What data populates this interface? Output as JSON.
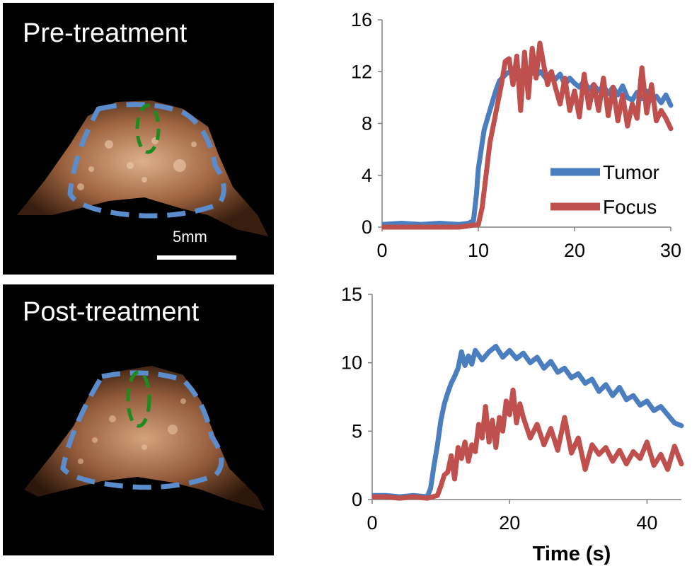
{
  "panels": {
    "pre": {
      "label": "Pre-treatment",
      "scale_label": "5mm"
    },
    "post": {
      "label": "Post-treatment"
    }
  },
  "colors": {
    "tumor": "#4a7ebf",
    "focus": "#c0504d",
    "focus_outline": "#1f8a1f",
    "tissue": "#d8a27a"
  },
  "chart_data": [
    {
      "type": "line",
      "title": "",
      "xlabel": "",
      "ylabel": "",
      "xlim": [
        0,
        30
      ],
      "ylim": [
        0,
        16
      ],
      "xticks": [
        0,
        10,
        20,
        30
      ],
      "yticks": [
        0,
        4,
        8,
        12,
        16
      ],
      "legend_position": "right",
      "series": [
        {
          "name": "Tumor",
          "x": [
            0,
            2,
            4,
            6,
            8,
            9,
            9.5,
            9.8,
            10,
            10.3,
            10.6,
            11,
            11.4,
            11.8,
            12.2,
            12.6,
            13,
            13.5,
            14,
            14.5,
            15,
            15.5,
            16,
            16.5,
            17,
            17.5,
            18,
            18.5,
            19,
            19.5,
            20,
            20.5,
            21,
            21.5,
            22,
            22.5,
            23,
            23.5,
            24,
            24.5,
            25,
            25.5,
            26,
            26.5,
            27,
            27.5,
            28,
            28.5,
            29,
            29.5,
            30
          ],
          "y": [
            0.2,
            0.3,
            0.2,
            0.3,
            0.2,
            0.3,
            0.5,
            2.5,
            4.5,
            6.0,
            7.5,
            8.5,
            9.5,
            10.5,
            11.3,
            11.6,
            11.9,
            12.0,
            12.2,
            12.0,
            11.8,
            12.1,
            11.7,
            12.0,
            11.5,
            11.9,
            11.4,
            11.8,
            11.0,
            11.5,
            11.1,
            10.8,
            11.3,
            10.6,
            11.0,
            10.5,
            10.9,
            10.3,
            10.8,
            10.2,
            10.9,
            10.0,
            9.8,
            10.4,
            9.9,
            10.5,
            9.8,
            10.1,
            9.6,
            10.2,
            9.4
          ]
        },
        {
          "name": "Focus",
          "x": [
            0,
            2,
            4,
            6,
            8,
            10,
            10.4,
            10.8,
            11.2,
            11.6,
            12,
            12.4,
            12.8,
            13.2,
            13.6,
            14,
            14.4,
            14.8,
            15.2,
            15.6,
            16,
            16.4,
            16.8,
            17.2,
            17.6,
            18,
            18.5,
            19,
            19.5,
            20,
            20.5,
            21,
            21.5,
            22,
            22.5,
            23,
            23.5,
            24,
            24.5,
            25,
            25.5,
            26,
            26.5,
            27,
            27.5,
            28,
            28.5,
            29,
            29.5,
            30
          ],
          "y": [
            0,
            0,
            0,
            0,
            0,
            0.2,
            1.5,
            4.0,
            6.5,
            8.0,
            9.5,
            11.0,
            12.8,
            13.0,
            11.0,
            13.2,
            9.0,
            13.5,
            10.0,
            13.8,
            11.5,
            14.2,
            12.5,
            11.0,
            12.0,
            10.8,
            9.5,
            11.5,
            9.0,
            10.5,
            8.5,
            11.8,
            9.2,
            11.0,
            9.0,
            11.5,
            8.6,
            10.8,
            8.2,
            10.2,
            7.8,
            9.5,
            8.4,
            12.3,
            8.8,
            11.0,
            8.2,
            9.0,
            8.4,
            7.6
          ]
        }
      ]
    },
    {
      "type": "line",
      "title": "",
      "xlabel": "Time (s)",
      "ylabel": "",
      "xlim": [
        0,
        45
      ],
      "ylim": [
        0,
        15
      ],
      "xticks": [
        0,
        20,
        40
      ],
      "yticks": [
        0,
        5,
        10,
        15
      ],
      "series": [
        {
          "name": "Tumor",
          "x": [
            0,
            2,
            4,
            6,
            8,
            8.5,
            9,
            9.5,
            10,
            10.5,
            11,
            11.5,
            12,
            12.5,
            13,
            13.5,
            14,
            14.5,
            15,
            16,
            17,
            18,
            19,
            20,
            21,
            22,
            23,
            24,
            25,
            26,
            27,
            28,
            29,
            30,
            31,
            32,
            33,
            34,
            35,
            36,
            37,
            38,
            39,
            40,
            41,
            42,
            43,
            44,
            45
          ],
          "y": [
            0.3,
            0.3,
            0.2,
            0.3,
            0.2,
            0.8,
            2.5,
            4.0,
            5.8,
            7.0,
            7.8,
            8.5,
            9.0,
            9.6,
            10.8,
            9.8,
            10.5,
            9.9,
            10.9,
            10.2,
            10.8,
            11.2,
            10.4,
            10.9,
            10.3,
            10.7,
            10.0,
            10.4,
            9.6,
            10.1,
            9.3,
            9.6,
            8.9,
            9.2,
            8.5,
            8.8,
            7.9,
            8.4,
            7.6,
            8.2,
            7.3,
            7.6,
            6.9,
            7.2,
            6.5,
            6.8,
            6.2,
            5.6,
            5.4
          ]
        },
        {
          "name": "Focus",
          "x": [
            0,
            2,
            4,
            6,
            8,
            9.5,
            10,
            10.5,
            11,
            11.5,
            12,
            12.5,
            13,
            13.5,
            14,
            14.5,
            15,
            15.5,
            16,
            16.5,
            17,
            17.5,
            18,
            18.5,
            19,
            19.5,
            20,
            20.5,
            21,
            21.5,
            22,
            23,
            24,
            25,
            26,
            27,
            28,
            29,
            30,
            31,
            32,
            33,
            34,
            35,
            36,
            37,
            38,
            39,
            40,
            41,
            42,
            43,
            44,
            45
          ],
          "y": [
            0.2,
            0.2,
            0.1,
            0.2,
            0.1,
            0.3,
            1.0,
            1.8,
            2.0,
            3.2,
            1.5,
            3.8,
            3.0,
            4.2,
            2.8,
            4.0,
            3.5,
            5.5,
            4.5,
            6.8,
            4.2,
            5.8,
            3.8,
            6.0,
            5.0,
            7.2,
            6.2,
            8.0,
            5.6,
            7.0,
            6.0,
            4.5,
            5.5,
            4.0,
            5.2,
            3.6,
            6.0,
            3.4,
            4.5,
            2.2,
            4.0,
            3.3,
            3.8,
            2.8,
            3.6,
            2.6,
            3.5,
            3.0,
            4.2,
            2.5,
            3.3,
            2.2,
            3.9,
            2.6
          ]
        }
      ]
    }
  ]
}
